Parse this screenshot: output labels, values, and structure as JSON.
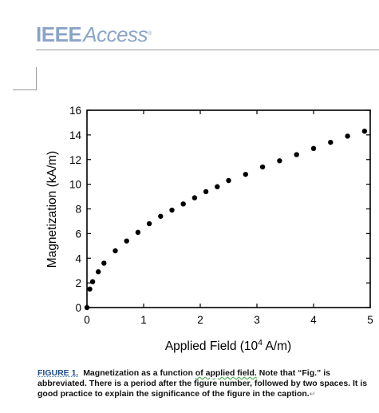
{
  "header": {
    "logo_ieee": "IEEE",
    "logo_access": "Access",
    "logo_mark": "®"
  },
  "chart_data": {
    "type": "scatter",
    "xlabel_main": "Applied Field (10",
    "xlabel_sup": "4",
    "xlabel_end": " A/m)",
    "ylabel": "Magnetization (kA/m)",
    "xlim": [
      0,
      5
    ],
    "ylim": [
      0,
      16
    ],
    "xticks": [
      0,
      1,
      2,
      3,
      4,
      5
    ],
    "yticks": [
      0,
      2,
      4,
      6,
      8,
      10,
      12,
      14,
      16
    ],
    "xtick_labels": [
      "0",
      "1",
      "2",
      "3",
      "4",
      "5"
    ],
    "ytick_labels": [
      "0",
      "2",
      "4",
      "6",
      "8",
      "10",
      "12",
      "14",
      "16"
    ],
    "grid": false,
    "marker_color": "#000000",
    "points": [
      [
        0.0,
        0.0
      ],
      [
        0.05,
        1.5
      ],
      [
        0.1,
        2.1
      ],
      [
        0.2,
        2.9
      ],
      [
        0.3,
        3.6
      ],
      [
        0.5,
        4.6
      ],
      [
        0.7,
        5.4
      ],
      [
        0.9,
        6.1
      ],
      [
        1.1,
        6.8
      ],
      [
        1.3,
        7.4
      ],
      [
        1.5,
        7.9
      ],
      [
        1.7,
        8.4
      ],
      [
        1.9,
        8.9
      ],
      [
        2.1,
        9.4
      ],
      [
        2.3,
        9.8
      ],
      [
        2.5,
        10.3
      ],
      [
        2.8,
        10.8
      ],
      [
        3.1,
        11.4
      ],
      [
        3.4,
        11.9
      ],
      [
        3.7,
        12.4
      ],
      [
        4.0,
        12.9
      ],
      [
        4.3,
        13.4
      ],
      [
        4.6,
        13.9
      ],
      [
        4.9,
        14.3
      ]
    ]
  },
  "caption": {
    "lead": "FIGURE 1.",
    "title_pre": "Magnetization as a function ",
    "title_spell": "of applied field.",
    "body": " Note that “Fig.” is abbreviated. There is a period after the figure number, followed by two spaces. It is good practice to explain the significance of the figure in the caption.",
    "paragraph_mark": "↵"
  }
}
